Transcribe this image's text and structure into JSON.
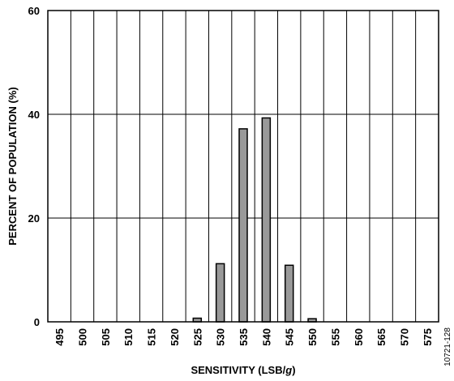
{
  "chart_data": {
    "type": "bar",
    "categories": [
      "495",
      "500",
      "505",
      "510",
      "515",
      "520",
      "525",
      "530",
      "535",
      "540",
      "545",
      "550",
      "555",
      "560",
      "565",
      "570",
      "575"
    ],
    "values": [
      0,
      0,
      0,
      0,
      0,
      0,
      0.7,
      11.2,
      37.2,
      39.3,
      10.9,
      0.6,
      0,
      0,
      0,
      0,
      0
    ],
    "xlabel_parts": {
      "before": "SENSITIVITY (LSB/",
      "italic": "g",
      "after": ")"
    },
    "ylabel": "PERCENT OF POPULATION (%)",
    "ylim": [
      0,
      60
    ],
    "yticks": [
      0,
      20,
      40,
      60
    ],
    "grid": true,
    "bar_color": "#999999",
    "ref_id": "10721-128"
  }
}
